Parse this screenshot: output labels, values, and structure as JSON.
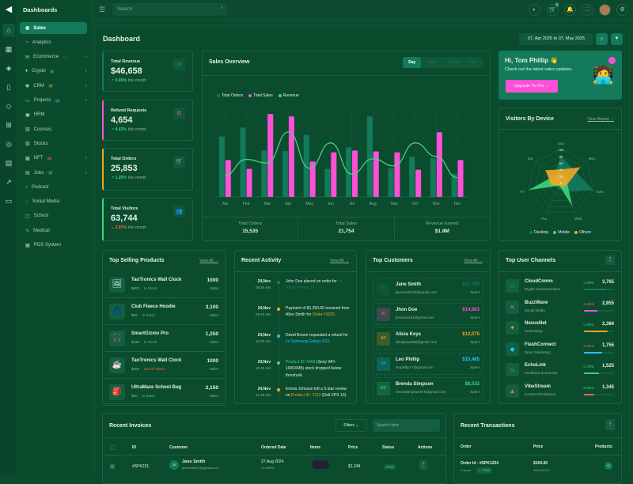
{
  "colors": {
    "accent": "#137a5c",
    "pink": "#ff4fd8",
    "green": "#3ed67d",
    "orange": "#f5a623",
    "red": "#ff6a4a",
    "cyan": "#1ec8ff"
  },
  "rail_icons": [
    "logo-icon",
    "home-icon",
    "grid-icon",
    "layers-icon",
    "file-icon",
    "diamond-icon",
    "gift-icon",
    "compass-icon",
    "store-icon",
    "chart-icon",
    "table-icon"
  ],
  "nav": {
    "title": "Dashboards",
    "items": [
      {
        "label": "Sales",
        "icon": "sales-icon",
        "active": true
      },
      {
        "label": "Analytics",
        "icon": "analytics-icon"
      },
      {
        "label": "Ecommerce",
        "icon": "ecommerce-icon",
        "badge": "1",
        "badge_color": "#137a5c",
        "chevron": true
      },
      {
        "label": "Crypto",
        "icon": "crypto-icon",
        "badge": "6",
        "badge_color": "#3ed67d",
        "chevron": true
      },
      {
        "label": "CRM",
        "icon": "crm-icon",
        "badge": "5",
        "badge_color": "#f5a623",
        "chevron": true
      },
      {
        "label": "Projects",
        "icon": "projects-icon",
        "badge": "4",
        "badge_color": "#1ec8ff",
        "chevron": true
      },
      {
        "label": "HRM",
        "icon": "hrm-icon"
      },
      {
        "label": "Courses",
        "icon": "courses-icon"
      },
      {
        "label": "Stocks",
        "icon": "stocks-icon"
      },
      {
        "label": "NFT",
        "icon": "nft-icon",
        "badge": "6",
        "badge_color": "#ff6a4a",
        "chevron": true
      },
      {
        "label": "Jobs",
        "icon": "jobs-icon",
        "badge": "8",
        "badge_color": "#3ed67d",
        "chevron": true
      },
      {
        "label": "Podcast",
        "icon": "mic-icon"
      },
      {
        "label": "Social Media",
        "icon": "social-icon"
      },
      {
        "label": "School",
        "icon": "school-icon"
      },
      {
        "label": "Medical",
        "icon": "pulse-icon"
      },
      {
        "label": "POS System",
        "icon": "pos-icon"
      }
    ]
  },
  "topbar": {
    "search_placeholder": "Search",
    "cart_count": "5"
  },
  "page": {
    "title": "Dashboard",
    "date_range": "07, Apr 2025 to 07, May 2025"
  },
  "stats": [
    {
      "label": "Total Revenue",
      "value": "$46,658",
      "change": "0.45%",
      "suffix": "this month",
      "trend": "up",
      "color": "#137a5c",
      "icon": "bag-icon"
    },
    {
      "label": "Refund Requests",
      "value": "4,654",
      "change": "4.43%",
      "suffix": "this month",
      "trend": "up",
      "color": "#ff4fd8",
      "icon": "refund-icon"
    },
    {
      "label": "Total Orders",
      "value": "25,853",
      "change": "1.25%",
      "suffix": "this month",
      "trend": "up",
      "color": "#f5a623",
      "icon": "cart-icon"
    },
    {
      "label": "Total Visitors",
      "value": "63,744",
      "change": "2.97%",
      "suffix": "this month",
      "trend": "down",
      "color": "#3ed67d",
      "icon": "users-icon"
    }
  ],
  "sales_overview": {
    "title": "Sales Overview",
    "tabs": [
      "Day",
      "Week",
      "Month",
      "Year"
    ],
    "active_tab": "Day",
    "summary": [
      {
        "label": "Total Orders",
        "value": "15,535"
      },
      {
        "label": "Total Sales",
        "value": "21,754"
      },
      {
        "label": "Revenue Earned",
        "value": "$1.8M"
      }
    ]
  },
  "chart_data": [
    {
      "type": "bar",
      "categories": [
        "Jan",
        "Feb",
        "Mar",
        "Apr",
        "May",
        "Jun",
        "Jul",
        "Aug",
        "Sep",
        "Oct",
        "Nov",
        "Dec"
      ],
      "series": [
        {
          "name": "Total Orders",
          "kind": "bar",
          "color": "#137a5c",
          "values": [
            205,
            235,
            157,
            155,
            210,
            95,
            168,
            273,
            97,
            137,
            131,
            78
          ]
        },
        {
          "name": "Total Sales",
          "kind": "bar",
          "color": "#ff4fd8",
          "values": [
            125,
            95,
            281,
            273,
            120,
            151,
            157,
            154,
            151,
            92,
            219,
            125
          ]
        },
        {
          "name": "Revenue",
          "kind": "line",
          "color": "#3ed67d",
          "values": [
            73,
            127,
            115,
            220,
            97,
            183,
            77,
            129,
            105,
            183,
            137,
            65
          ]
        }
      ],
      "legend": "top-left",
      "ylim": [
        0,
        300
      ],
      "grid": "vertical-dotted"
    },
    {
      "type": "radar",
      "title": "Visitors By Device",
      "axes": [
        "Sun",
        "Mon",
        "Tues",
        "Wed",
        "Thu",
        "Fri",
        "Sat"
      ],
      "ticks": [
        "0",
        "20",
        "40",
        "60",
        "80",
        "100"
      ],
      "ylim": [
        0,
        100
      ],
      "series": [
        {
          "name": "Desktop",
          "color": "#137a5c",
          "values": [
            80,
            55,
            100,
            30,
            20,
            20,
            30
          ]
        },
        {
          "name": "Mobile",
          "color": "#3ed67d",
          "values": [
            30,
            20,
            20,
            80,
            10,
            100,
            30
          ]
        },
        {
          "name": "Others",
          "color": "#f5a623",
          "values": [
            40,
            75,
            20,
            15,
            10,
            30,
            60
          ]
        }
      ],
      "legend": "bottom"
    }
  ],
  "welcome": {
    "greeting": "Hi, Tom Phillip 👋",
    "text": "Check out the latest sales updates.",
    "button": "Upgrade To Pro →"
  },
  "visitors": {
    "title": "Visitors By Device",
    "link": "View Report →"
  },
  "top_products": {
    "title": "Top Selling Products",
    "link": "View All →",
    "items": [
      {
        "name": "TaoTronics Wall Clock",
        "price": "$600",
        "status": "In Stock",
        "sales": "1000",
        "unit": "Sales",
        "thumb": "🖼"
      },
      {
        "name": "Club Fleece Hoodie",
        "price": "$55",
        "status": "In Stock",
        "sales": "3,100",
        "unit": "Sales",
        "thumb": "🧥"
      },
      {
        "name": "SmartGizmo Pro",
        "price": "$199",
        "status": "In Stock",
        "sales": "1,250",
        "unit": "Sales",
        "thumb": "🎧"
      },
      {
        "name": "TaoTronics Wall Clock",
        "price": "$600",
        "status": "Out Of Stock",
        "sales": "1000",
        "unit": "Sales",
        "thumb": "☕"
      },
      {
        "name": "UltraMaze School Bag",
        "price": "$80",
        "status": "In Stock",
        "sales": "2,150",
        "unit": "Sales",
        "thumb": "🎒"
      }
    ]
  },
  "activity": {
    "title": "Recent Activity",
    "link": "View All →",
    "items": [
      {
        "date": "24,Nov",
        "time": "08:45 AM",
        "color": "#137a5c",
        "pre": "John Doe placed an order for ",
        "hl": "5x Apple iPhone 14",
        "post": ""
      },
      {
        "date": "24,Nov",
        "time": "09:15 AM",
        "color": "#f5a623",
        "pre": "Payment of $1,250.00 received from Alice Smith for ",
        "hl": "Order #1020",
        "post": "."
      },
      {
        "date": "24,Nov",
        "time": "10:00 AM",
        "color": "#1ec8ff",
        "pre": "David Brown requested a refund for ",
        "hl": "1x Samsung Galaxy S22",
        "post": "."
      },
      {
        "date": "24,Nov",
        "time": "10:45 AM",
        "color": "#3ed67d",
        "pre": "",
        "hl": "Product ID: 5409",
        "post": " (Sony WH-1000XM5) stock dropped below threshold."
      },
      {
        "date": "24,Nov",
        "time": "11:30 AM",
        "color": "#f5a623",
        "pre": "Emma Johnson left a 5-star review on ",
        "hl": "Product ID: 7312",
        "post": " (Dell XPS 13)."
      }
    ]
  },
  "customers": {
    "title": "Top Customers",
    "link": "View All →",
    "items": [
      {
        "initials": "JS",
        "name": "Jane Smith",
        "email": "janesmith215@gmail.com",
        "amount": "$23,765",
        "label": "Spent",
        "color": "#137a5c"
      },
      {
        "initials": "JD",
        "name": "Jhon Doe",
        "email": "jhondoe431@gmail.com",
        "amount": "$14,563",
        "label": "Spent",
        "color": "#ff4fd8"
      },
      {
        "initials": "AK",
        "name": "Alicia Keys",
        "email": "aliciakeys095@gmail.com",
        "amount": "$12,075",
        "label": "Spent",
        "color": "#f5a623"
      },
      {
        "initials": "LP",
        "name": "Leo Phillip",
        "email": "leophillip77@gmail.com",
        "amount": "$10,485",
        "label": "Spent",
        "color": "#1ec8ff"
      },
      {
        "initials": "BS",
        "name": "Brenda Simpson",
        "email": "brendasimpson075@gmail.com",
        "amount": "$8,533",
        "label": "Spent",
        "color": "#3ed67d"
      }
    ]
  },
  "channels": {
    "title": "Top User Channels",
    "items": [
      {
        "name": "CloudComm",
        "sub": "Digital Communication",
        "change": "2.98%",
        "trend": "up",
        "value": "3,765",
        "progress": 75,
        "color": "#137a5c",
        "icon": "✿"
      },
      {
        "name": "BuzzWave",
        "sub": "Social Media",
        "change": "6.45%",
        "trend": "down",
        "value": "2,855",
        "progress": 45,
        "color": "#ff4fd8",
        "icon": "✕"
      },
      {
        "name": "NexusNet",
        "sub": "Networking",
        "change": "1.95%",
        "trend": "up",
        "value": "2,384",
        "progress": 80,
        "color": "#f5a623",
        "icon": "✦"
      },
      {
        "name": "FlashConnect",
        "sub": "Direct Marketing",
        "change": "5.91%",
        "trend": "down",
        "value": "1,755",
        "progress": 60,
        "color": "#1ec8ff",
        "icon": "◆"
      },
      {
        "name": "EchoLink",
        "sub": "Feedback & Surveys",
        "change": "3.75%",
        "trend": "up",
        "value": "1,525",
        "progress": 50,
        "color": "#3ed67d",
        "icon": "♨"
      },
      {
        "name": "VibeStream",
        "sub": "Content Distribution",
        "change": "0.95%",
        "trend": "up",
        "value": "1,345",
        "progress": 35,
        "color": "#ff6a4a",
        "icon": "▲"
      }
    ]
  },
  "invoices": {
    "title": "Recent Invoices",
    "filter": "Filters ⌄",
    "search_placeholder": "Search Here",
    "columns": [
      "ID",
      "Customer",
      "Ordered Date",
      "Items",
      "Price",
      "Status",
      "Actions"
    ],
    "rows": [
      {
        "id": "#SPK231",
        "initials": "JS",
        "name": "Jane Smith",
        "email": "janesmith213@gmail.com",
        "date": "27,Aug 2024",
        "time": "12:45PM",
        "price": "$1,249",
        "status": "Paid"
      }
    ]
  },
  "transactions": {
    "title": "Recent Transactions",
    "columns": [
      "Order",
      "Price",
      "Products"
    ],
    "rows": [
      {
        "order": "Order Id - #SPK1234",
        "items": "4 Items",
        "status": "✓ Paid",
        "price": "$150.00",
        "date": "2024-08-27",
        "more": "+2"
      }
    ]
  }
}
